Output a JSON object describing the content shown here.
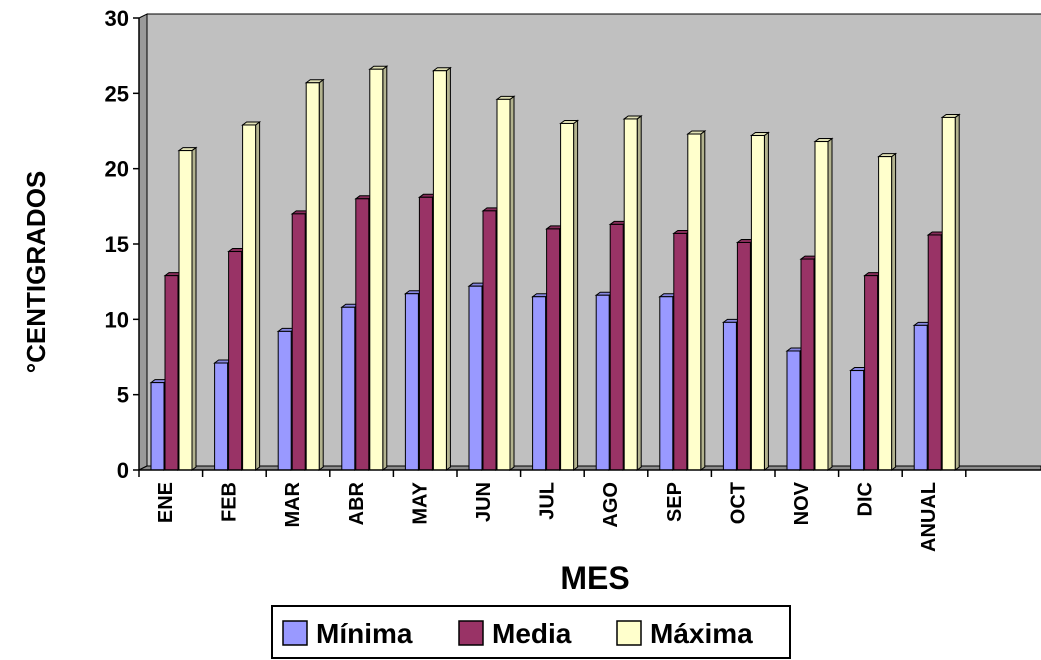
{
  "chart_data": {
    "type": "bar",
    "xlabel": "MES",
    "ylabel": "°CENTIGRADOS",
    "categories": [
      "ENE",
      "FEB",
      "MAR",
      "ABR",
      "MAY",
      "JUN",
      "JUL",
      "AGO",
      "SEP",
      "OCT",
      "NOV",
      "DIC",
      "ANUAL"
    ],
    "series": [
      {
        "name": "Mínima",
        "color": "#9999ff",
        "values": [
          5.8,
          7.1,
          9.2,
          10.8,
          11.7,
          12.2,
          11.5,
          11.6,
          11.5,
          9.8,
          7.9,
          6.6,
          9.6
        ]
      },
      {
        "name": "Media",
        "color": "#993366",
        "values": [
          12.9,
          14.5,
          17.0,
          18.0,
          18.1,
          17.2,
          16.0,
          16.3,
          15.7,
          15.1,
          14.0,
          12.9,
          15.6
        ]
      },
      {
        "name": "Máxima",
        "color": "#ffffcc",
        "values": [
          21.2,
          22.9,
          25.7,
          26.6,
          26.5,
          24.6,
          23.0,
          23.3,
          22.3,
          22.2,
          21.8,
          20.8,
          23.4
        ]
      }
    ],
    "ylim": [
      0,
      30
    ],
    "yticks": [
      0,
      5,
      10,
      15,
      20,
      25,
      30
    ],
    "plot_background": "#c0c0c0",
    "grid": false,
    "legend_position": "bottom"
  }
}
